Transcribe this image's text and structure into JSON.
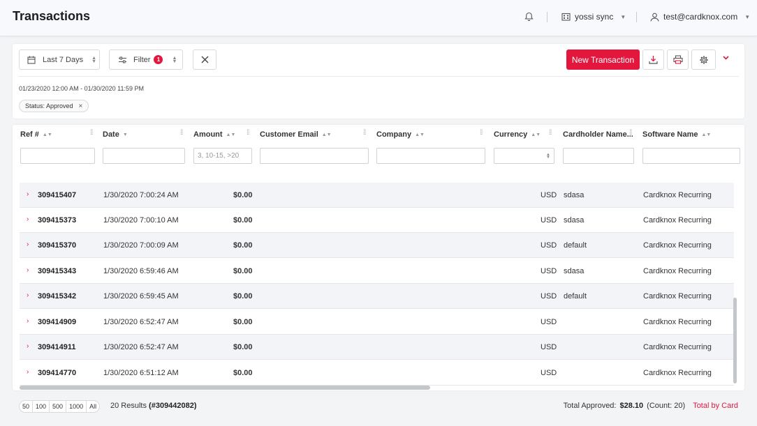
{
  "header": {
    "title": "Transactions",
    "account_name": "yossi sync",
    "user_email": "test@cardknox.com"
  },
  "toolbar": {
    "date_range_label": "Last 7 Days",
    "filter_label": "Filter",
    "filter_count": "1",
    "new_transaction_label": "New Transaction",
    "date_range_text": "01/23/2020 12:00 AM - 01/30/2020 11:59 PM",
    "active_filter_chip": "Status: Approved"
  },
  "grid": {
    "columns": {
      "ref": "Ref #",
      "date": "Date",
      "amount": "Amount",
      "email": "Customer Email",
      "company": "Company",
      "currency": "Currency",
      "cardholder": "Cardholder Name...",
      "software": "Software Name"
    },
    "amount_placeholder": "3, 10-15, >20",
    "rows": [
      {
        "ref": "309415407",
        "date": "1/30/2020 7:00:24 AM",
        "amount": "$0.00",
        "currency": "USD",
        "cardholder": "sdasa",
        "software": "Cardknox Recurring"
      },
      {
        "ref": "309415373",
        "date": "1/30/2020 7:00:10 AM",
        "amount": "$0.00",
        "currency": "USD",
        "cardholder": "sdasa",
        "software": "Cardknox Recurring"
      },
      {
        "ref": "309415370",
        "date": "1/30/2020 7:00:09 AM",
        "amount": "$0.00",
        "currency": "USD",
        "cardholder": "default",
        "software": "Cardknox Recurring"
      },
      {
        "ref": "309415343",
        "date": "1/30/2020 6:59:46 AM",
        "amount": "$0.00",
        "currency": "USD",
        "cardholder": "sdasa",
        "software": "Cardknox Recurring"
      },
      {
        "ref": "309415342",
        "date": "1/30/2020 6:59:45 AM",
        "amount": "$0.00",
        "currency": "USD",
        "cardholder": "default",
        "software": "Cardknox Recurring"
      },
      {
        "ref": "309414909",
        "date": "1/30/2020 6:52:47 AM",
        "amount": "$0.00",
        "currency": "USD",
        "cardholder": "",
        "software": "Cardknox Recurring"
      },
      {
        "ref": "309414911",
        "date": "1/30/2020 6:52:47 AM",
        "amount": "$0.00",
        "currency": "USD",
        "cardholder": "",
        "software": "Cardknox Recurring"
      },
      {
        "ref": "309414770",
        "date": "1/30/2020 6:51:12 AM",
        "amount": "$0.00",
        "currency": "USD",
        "cardholder": "",
        "software": "Cardknox Recurring"
      }
    ]
  },
  "footer": {
    "page_sizes": [
      "50",
      "100",
      "500",
      "1000",
      "All"
    ],
    "results_count": "20 Results",
    "results_ref": "(#309442082)",
    "total_label": "Total Approved:",
    "total_amount": "$28.10",
    "total_count": "(Count: 20)",
    "by_card_label": "Total by Card"
  },
  "colors": {
    "accent": "#e3173e"
  }
}
